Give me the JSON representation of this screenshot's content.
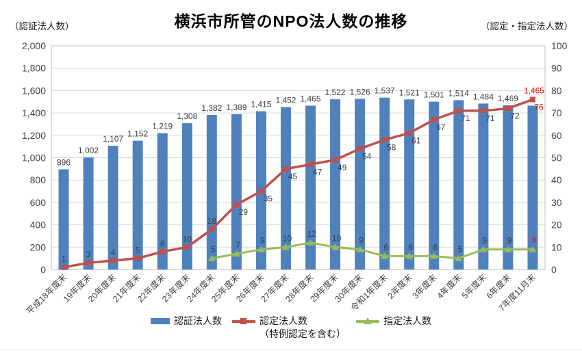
{
  "title": "横浜市所管のNPO法人数の推移",
  "left_axis_unit": "（認証法人数）",
  "right_axis_unit": "（認定・指定法人数）",
  "colors": {
    "bar": "#4F81BD",
    "accredited": "#C0504D",
    "designated": "#9BBB59",
    "highlight": "#FF0000",
    "grid": "#D9D9D9",
    "border": "#BFBFBF",
    "axis_text": "#404040",
    "label": "#3D3D3D"
  },
  "chart_data": {
    "type": "bar",
    "subtype": "bar+line combo, dual axis",
    "title": "横浜市所管のNPO法人数の推移",
    "categories": [
      "平成18年度末",
      "19年度末",
      "20年度末",
      "21年度末",
      "22年度末",
      "23年度末",
      "24年度末",
      "25年度末",
      "26年度末",
      "27年度末",
      "28年度末",
      "29年度末",
      "30年度末",
      "令和1年度末",
      "2年度末",
      "3年度末",
      "4年度末",
      "5年度末",
      "6年度末",
      "7年度11月末"
    ],
    "series": [
      {
        "name": "認証法人数",
        "type": "bar",
        "axis": "left",
        "values": [
          896,
          1002,
          1107,
          1152,
          1219,
          1308,
          1382,
          1389,
          1415,
          1452,
          1465,
          1522,
          1526,
          1537,
          1521,
          1501,
          1514,
          1484,
          1469,
          1465
        ]
      },
      {
        "name": "認定法人数",
        "subtitle": "（特例認定を含む）",
        "type": "line",
        "marker": "square",
        "axis": "right",
        "values": [
          1,
          3,
          4,
          5,
          8,
          10,
          18,
          29,
          35,
          45,
          47,
          49,
          54,
          58,
          61,
          67,
          71,
          71,
          72,
          76
        ]
      },
      {
        "name": "指定法人数",
        "type": "line",
        "marker": "triangle",
        "axis": "right",
        "values": [
          null,
          null,
          null,
          null,
          null,
          null,
          5,
          7,
          9,
          10,
          12,
          10,
          9,
          6,
          6,
          6,
          5,
          9,
          9,
          9
        ]
      }
    ],
    "left_axis": {
      "min": 0,
      "max": 2000,
      "step": 200,
      "tick_labels": [
        "2,000",
        "1,800",
        "1,600",
        "1,400",
        "1,200",
        "1,000",
        "800",
        "600",
        "400",
        "200",
        "0"
      ]
    },
    "right_axis": {
      "min": 0,
      "max": 100,
      "step": 10,
      "tick_labels": [
        "100",
        "90",
        "80",
        "70",
        "60",
        "50",
        "40",
        "30",
        "20",
        "10",
        "0"
      ]
    },
    "grid": true,
    "data_labels": true,
    "highlight_last_values": [
      "1,465",
      "76",
      "9"
    ],
    "legend_position": "bottom"
  }
}
